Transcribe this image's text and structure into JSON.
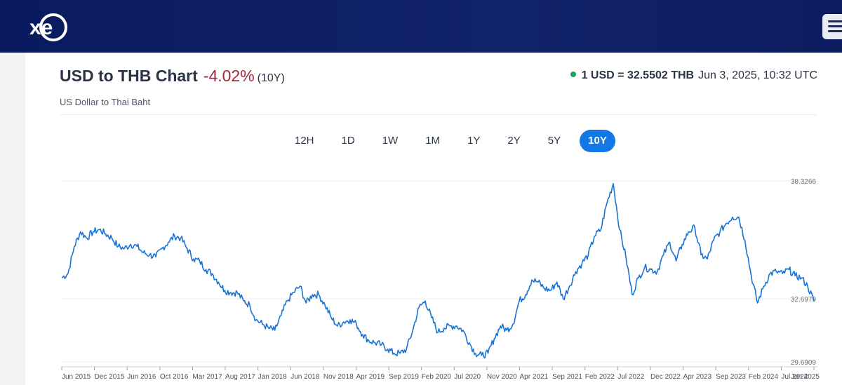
{
  "header": {
    "logo_text": "xe",
    "logo_icon": "xe-logo-icon",
    "menu_icon": "hamburger-menu-icon"
  },
  "summary": {
    "title": "USD to THB Chart",
    "change": "-4.02%",
    "period": "(10Y)",
    "subtitle": "US Dollar to Thai Baht",
    "rate": "1 USD = 32.5502 THB",
    "timestamp": "Jun 3, 2025, 10:32 UTC",
    "status_color": "#1fa35b"
  },
  "tabs": [
    {
      "label": "12H",
      "active": false
    },
    {
      "label": "1D",
      "active": false
    },
    {
      "label": "1W",
      "active": false
    },
    {
      "label": "1M",
      "active": false
    },
    {
      "label": "1Y",
      "active": false
    },
    {
      "label": "2Y",
      "active": false
    },
    {
      "label": "5Y",
      "active": false
    },
    {
      "label": "10Y",
      "active": true
    }
  ],
  "chart_data": {
    "type": "line",
    "line_color": "#1a73d6",
    "ylim": [
      29.6909,
      38.3266
    ],
    "ytick_labels": [
      "38.3266",
      "32.6979",
      "29.6909"
    ],
    "xtick_labels": [
      "Jun 2015",
      "Dec 2015",
      "Jun 2016",
      "Oct 2016",
      "Mar 2017",
      "Aug 2017",
      "Jan 2018",
      "Jun 2018",
      "Nov 2018",
      "Apr 2019",
      "Sep 2019",
      "Feb 2020",
      "Jul 2020",
      "Nov 2020",
      "Apr 2021",
      "Sep 2021",
      "Feb 2022",
      "Jul 2022",
      "Dec 2022",
      "Apr 2023",
      "Sep 2023",
      "Feb 2024",
      "Jul 2024",
      "Jun 2025"
    ],
    "grid": "horizontal",
    "series": [
      {
        "x": [
          "2015-06",
          "2015-07",
          "2015-08",
          "2015-09",
          "2015-10",
          "2015-11",
          "2015-12",
          "2016-01",
          "2016-02",
          "2016-03",
          "2016-04",
          "2016-05",
          "2016-06",
          "2016-07",
          "2016-08",
          "2016-09",
          "2016-10",
          "2016-11",
          "2016-12",
          "2017-01",
          "2017-02",
          "2017-03",
          "2017-04",
          "2017-05",
          "2017-06",
          "2017-07",
          "2017-08",
          "2017-09",
          "2017-10",
          "2017-11",
          "2017-12",
          "2018-01",
          "2018-02",
          "2018-03",
          "2018-04",
          "2018-05",
          "2018-06",
          "2018-07",
          "2018-08",
          "2018-09",
          "2018-10",
          "2018-11",
          "2018-12",
          "2019-01",
          "2019-02",
          "2019-03",
          "2019-04",
          "2019-05",
          "2019-06",
          "2019-07",
          "2019-08",
          "2019-09",
          "2019-10",
          "2019-11",
          "2019-12",
          "2020-01",
          "2020-02",
          "2020-03",
          "2020-04",
          "2020-05",
          "2020-06",
          "2020-07",
          "2020-08",
          "2020-09",
          "2020-10",
          "2020-11",
          "2020-12",
          "2021-01",
          "2021-02",
          "2021-03",
          "2021-04",
          "2021-05",
          "2021-06",
          "2021-07",
          "2021-08",
          "2021-09",
          "2021-10",
          "2021-11",
          "2021-12",
          "2022-01",
          "2022-02",
          "2022-03",
          "2022-04",
          "2022-05",
          "2022-06",
          "2022-07",
          "2022-08",
          "2022-09",
          "2022-10",
          "2022-11",
          "2022-12",
          "2023-01",
          "2023-02",
          "2023-03",
          "2023-04",
          "2023-05",
          "2023-06",
          "2023-07",
          "2023-08",
          "2023-09",
          "2023-10",
          "2023-11",
          "2023-12",
          "2024-01",
          "2024-02",
          "2024-03",
          "2024-04",
          "2024-05",
          "2024-06",
          "2024-07",
          "2024-08",
          "2024-09",
          "2024-10",
          "2024-11",
          "2024-12",
          "2025-01",
          "2025-02",
          "2025-03",
          "2025-04",
          "2025-05",
          "2025-06"
        ],
        "values": [
          33.7,
          33.9,
          35.2,
          35.9,
          35.6,
          35.9,
          36.0,
          35.8,
          35.6,
          35.2,
          35.1,
          35.3,
          35.2,
          34.9,
          34.8,
          34.7,
          35.1,
          35.4,
          35.7,
          35.6,
          35.1,
          34.6,
          34.5,
          34.1,
          33.9,
          33.5,
          33.1,
          33.0,
          33.0,
          32.6,
          32.4,
          31.7,
          31.5,
          31.3,
          31.2,
          31.9,
          32.6,
          33.0,
          33.3,
          32.5,
          32.9,
          32.9,
          32.4,
          31.8,
          31.4,
          31.6,
          31.7,
          31.5,
          31.0,
          30.7,
          30.6,
          30.5,
          30.3,
          30.1,
          30.1,
          30.3,
          31.2,
          32.3,
          32.6,
          31.8,
          31.1,
          31.3,
          31.4,
          31.4,
          31.2,
          30.6,
          30.1,
          30.0,
          30.1,
          30.8,
          31.4,
          31.2,
          31.5,
          32.6,
          32.9,
          33.6,
          33.5,
          33.2,
          33.1,
          33.5,
          32.7,
          33.3,
          34.0,
          34.4,
          34.8,
          35.7,
          36.0,
          37.3,
          38.2,
          36.0,
          34.7,
          32.9,
          33.7,
          34.2,
          34.1,
          34.0,
          34.8,
          35.4,
          34.5,
          35.3,
          35.9,
          36.1,
          34.8,
          34.6,
          35.5,
          35.9,
          36.3,
          36.6,
          36.6,
          35.5,
          33.8,
          32.5,
          33.3,
          33.9,
          34.0,
          33.9,
          34.1,
          33.8,
          33.7,
          33.3,
          32.6
        ]
      }
    ]
  }
}
